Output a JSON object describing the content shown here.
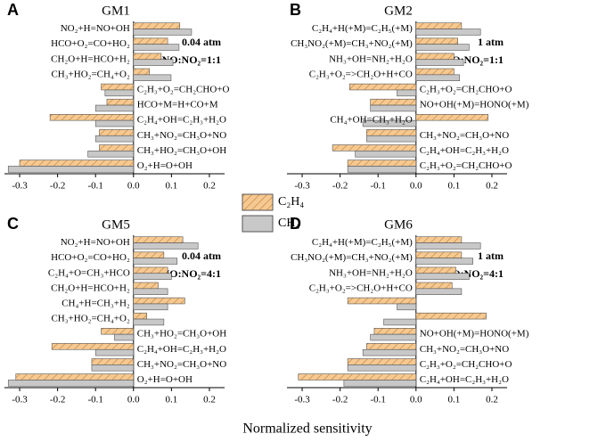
{
  "xlabel": "Normalized sensitivity",
  "chart_data": [
    {
      "type": "hbar",
      "panel": "A",
      "title": "GM1",
      "annotations": [
        "0.04 atm",
        "NO:NO₂=1:1"
      ],
      "categories": [
        "NO₂+H=NO+OH",
        "HCO+O₂=CO+HO₂",
        "CH₂O+H=HCO+H₂",
        "CH₃+HO₂=CH₄+O₂",
        "C₂H₃+O₂=CH₂CHO+O",
        "HCO+M=H+CO+M",
        "C₂H₄+OH=C₂H₃+H₂O",
        "CH₃+NO₂=CH₃O+NO",
        "CH₃+HO₂=CH₃O+OH",
        "O₂+H=O+OH"
      ],
      "series": [
        {
          "name": "C₂H₄",
          "color": "#f6c992",
          "values": [
            0.122,
            0.09,
            0.073,
            0.042,
            -0.085,
            -0.07,
            -0.22,
            -0.09,
            -0.09,
            -0.3
          ]
        },
        {
          "name": "CH₄",
          "color": "#c8c8c8",
          "values": [
            0.153,
            0.12,
            0.104,
            0.099,
            -0.075,
            -0.1,
            -0.1,
            -0.1,
            -0.12,
            -0.33
          ]
        }
      ],
      "xlim": [
        -0.34,
        0.24
      ],
      "xticks": [
        -0.3,
        -0.2,
        -0.1,
        {
          "value": 0,
          "label": "0.0"
        },
        0.1,
        0.2
      ]
    },
    {
      "type": "hbar",
      "panel": "B",
      "title": "GM2",
      "annotations": [
        "1 atm",
        "NO:NO₂=1:1"
      ],
      "categories": [
        "C₂H₄+H(+M)=C₂H₅(+M)",
        "CH₃NO₂(+M)=CH₃+NO₂(+M)",
        "NH₃+OH=NH₂+H₂O",
        "C₂H₃+O₂=>CH₂O+H+CO",
        "C₂H₃+O₂=CH₂CHO+O",
        "NO+OH(+M)=HONO(+M)",
        "CH₄+OH=CH₃+H₂O",
        "CH₃+NO₂=CH₃O+NO",
        "C₂H₄+OH=C₂H₃+H₂O",
        "C₂H₃+O₂=CH₂CHO+O"
      ],
      "series": [
        {
          "color": "#f6c992",
          "values": [
            0.12,
            0.11,
            0.1,
            0.1,
            -0.175,
            -0.12,
            0.19,
            -0.13,
            -0.22,
            -0.18
          ]
        },
        {
          "color": "#c8c8c8",
          "values": [
            0.17,
            0.14,
            0.125,
            0.115,
            -0.05,
            -0.12,
            -0.14,
            -0.13,
            -0.16,
            -0.18
          ]
        }
      ],
      "xlim": [
        -0.34,
        0.24
      ],
      "xticks": [
        -0.3,
        -0.2,
        -0.1,
        {
          "value": 0,
          "label": "0.0"
        },
        0.1,
        0.2
      ]
    },
    {
      "type": "hbar",
      "panel": "C",
      "title": "GM5",
      "annotations": [
        "0.04 atm",
        "NO:NO₂=4:1"
      ],
      "categories": [
        "NO₂+H=NO+OH",
        "HCO+O₂=CO+HO₂",
        "C₂H₄+O=CH₃+HCO",
        "CH₂O+H=HCO+H₂",
        "CH₄+H=CH₃+H₂",
        "CH₃+HO₂=CH₄+O₂",
        "CH₃+HO₂=CH₃O+OH",
        "C₂H₄+OH=C₂H₃+H₂O",
        "CH₃+NO₂=CH₃O+NO",
        "O₂+H=O+OH"
      ],
      "series": [
        {
          "color": "#f6c992",
          "values": [
            0.13,
            0.08,
            0.09,
            0.065,
            0.135,
            0.035,
            -0.085,
            -0.215,
            -0.11,
            -0.31
          ]
        },
        {
          "color": "#c8c8c8",
          "values": [
            0.17,
            0.115,
            0.1,
            0.09,
            0.09,
            0.08,
            -0.05,
            -0.1,
            -0.11,
            -0.33
          ]
        }
      ],
      "xlim": [
        -0.34,
        0.24
      ],
      "xticks": [
        -0.3,
        -0.2,
        -0.1,
        {
          "value": 0,
          "label": "0.0"
        },
        0.1,
        0.2
      ]
    },
    {
      "type": "hbar",
      "panel": "D",
      "title": "GM6",
      "annotations": [
        "1 atm",
        "NO:NO₂=4:1"
      ],
      "categories": [
        "C₂H₄+H(+M)=C₂H₅(+M)",
        "CH₃NO₂(+M)=CH₃+NO₂(+M)",
        "NH₃+OH=NH₂+H₂O",
        "C₂H₃+O₂=>CH₂O+H+CO",
        null,
        null,
        "NO+OH(+M)=HONO(+M)",
        "CH₃+NO₂=CH₃O+NO",
        "C₂H₃+O₂=CH₂CHO+O",
        "C₂H₄+OH=C₂H₃+H₂O"
      ],
      "series": [
        {
          "color": "#f6c992",
          "values": [
            0.12,
            0.12,
            0.105,
            0.095,
            -0.18,
            0.185,
            -0.11,
            -0.13,
            -0.18,
            -0.31
          ]
        },
        {
          "color": "#c8c8c8",
          "values": [
            0.17,
            0.15,
            0.14,
            0.12,
            -0.05,
            -0.085,
            -0.12,
            -0.14,
            -0.18,
            -0.19
          ]
        }
      ],
      "xlim": [
        -0.34,
        0.24
      ],
      "xticks": [
        -0.3,
        -0.2,
        -0.1,
        {
          "value": 0,
          "label": "0.0"
        },
        0.1,
        0.2
      ]
    }
  ]
}
